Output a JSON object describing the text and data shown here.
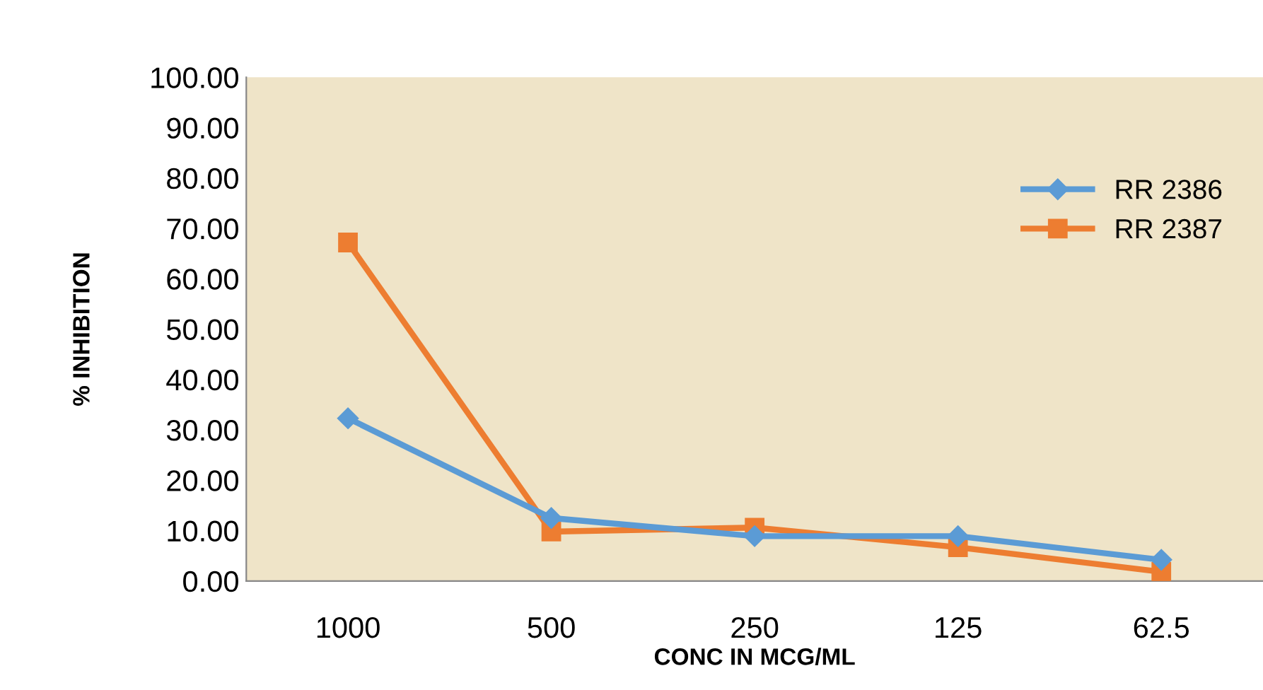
{
  "chart_data": {
    "type": "line",
    "xlabel": "CONC IN MCG/ML",
    "ylabel": "% INHIBITION",
    "categories": [
      "1000",
      "500",
      "250",
      "125",
      "62.5"
    ],
    "series": [
      {
        "name": "RR 2386",
        "color": "#5b9bd5",
        "marker": "diamond",
        "values": [
          32.3,
          12.5,
          8.9,
          8.9,
          4.2
        ]
      },
      {
        "name": "RR 2387",
        "color": "#ed7d31",
        "marker": "square",
        "values": [
          67.2,
          9.8,
          10.6,
          6.7,
          1.8
        ]
      }
    ],
    "ylim": [
      0,
      100
    ],
    "yticks": [
      {
        "value": 0,
        "label": "0.00"
      },
      {
        "value": 10,
        "label": "10.00"
      },
      {
        "value": 20,
        "label": "20.00"
      },
      {
        "value": 30,
        "label": "30.00"
      },
      {
        "value": 40,
        "label": "40.00"
      },
      {
        "value": 50,
        "label": "50.00"
      },
      {
        "value": 60,
        "label": "60.00"
      },
      {
        "value": 70,
        "label": "70.00"
      },
      {
        "value": 80,
        "label": "80.00"
      },
      {
        "value": 90,
        "label": "90.00"
      },
      {
        "value": 100,
        "label": "100.00"
      }
    ],
    "grid": false,
    "legend": "right",
    "line_style": "solid"
  }
}
